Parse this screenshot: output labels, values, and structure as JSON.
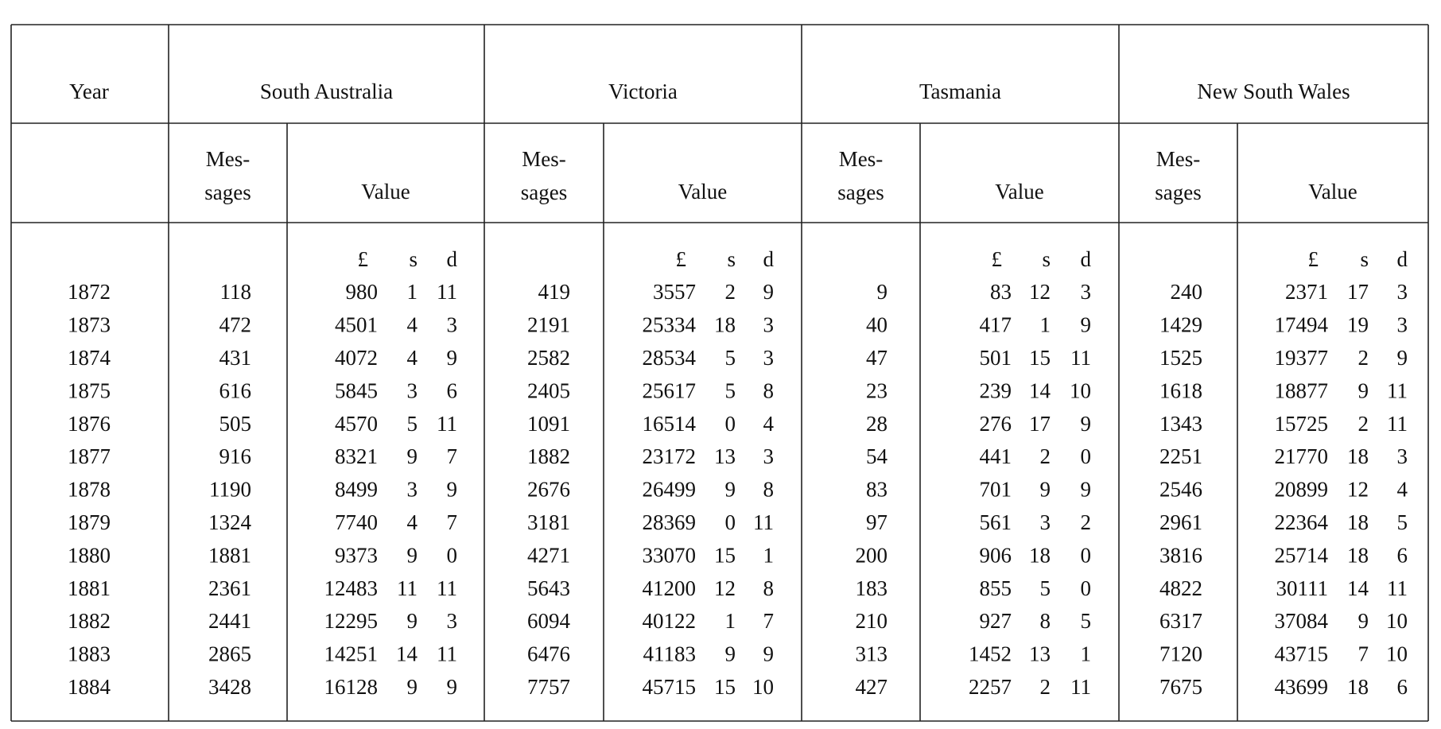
{
  "table": {
    "year_header": "Year",
    "colonies": [
      "South Australia",
      "Victoria",
      "Tasmania",
      "New South Wales"
    ],
    "messages_header": [
      "Mes-",
      "sages"
    ],
    "value_header": "Value",
    "units": [
      "£",
      "s",
      "d"
    ],
    "rows": [
      [
        1872,
        118,
        980,
        1,
        11,
        419,
        3557,
        2,
        9,
        9,
        83,
        12,
        3,
        240,
        2371,
        17,
        3
      ],
      [
        1873,
        472,
        4501,
        4,
        3,
        2191,
        25334,
        18,
        3,
        40,
        417,
        1,
        9,
        1429,
        17494,
        19,
        3
      ],
      [
        1874,
        431,
        4072,
        4,
        9,
        2582,
        28534,
        5,
        3,
        47,
        501,
        15,
        11,
        1525,
        19377,
        2,
        9
      ],
      [
        1875,
        616,
        5845,
        3,
        6,
        2405,
        25617,
        5,
        8,
        23,
        239,
        14,
        10,
        1618,
        18877,
        9,
        11
      ],
      [
        1876,
        505,
        4570,
        5,
        11,
        1091,
        16514,
        0,
        4,
        28,
        276,
        17,
        9,
        1343,
        15725,
        2,
        11
      ],
      [
        1877,
        916,
        8321,
        9,
        7,
        1882,
        23172,
        13,
        3,
        54,
        441,
        2,
        0,
        2251,
        21770,
        18,
        3
      ],
      [
        1878,
        1190,
        8499,
        3,
        9,
        2676,
        26499,
        9,
        8,
        83,
        701,
        9,
        9,
        2546,
        20899,
        12,
        4
      ],
      [
        1879,
        1324,
        7740,
        4,
        7,
        3181,
        28369,
        0,
        11,
        97,
        561,
        3,
        2,
        2961,
        22364,
        18,
        5
      ],
      [
        1880,
        1881,
        9373,
        9,
        0,
        4271,
        33070,
        15,
        1,
        200,
        906,
        18,
        0,
        3816,
        25714,
        18,
        6
      ],
      [
        1881,
        2361,
        12483,
        11,
        11,
        5643,
        41200,
        12,
        8,
        183,
        855,
        5,
        0,
        4822,
        30111,
        14,
        11
      ],
      [
        1882,
        2441,
        12295,
        9,
        3,
        6094,
        40122,
        1,
        7,
        210,
        927,
        8,
        5,
        6317,
        37084,
        9,
        10
      ],
      [
        1883,
        2865,
        14251,
        14,
        11,
        6476,
        41183,
        9,
        9,
        313,
        1452,
        13,
        1,
        7120,
        43715,
        7,
        10
      ],
      [
        1884,
        3428,
        16128,
        9,
        9,
        7757,
        45715,
        15,
        10,
        427,
        2257,
        2,
        11,
        7675,
        43699,
        18,
        6
      ]
    ]
  }
}
